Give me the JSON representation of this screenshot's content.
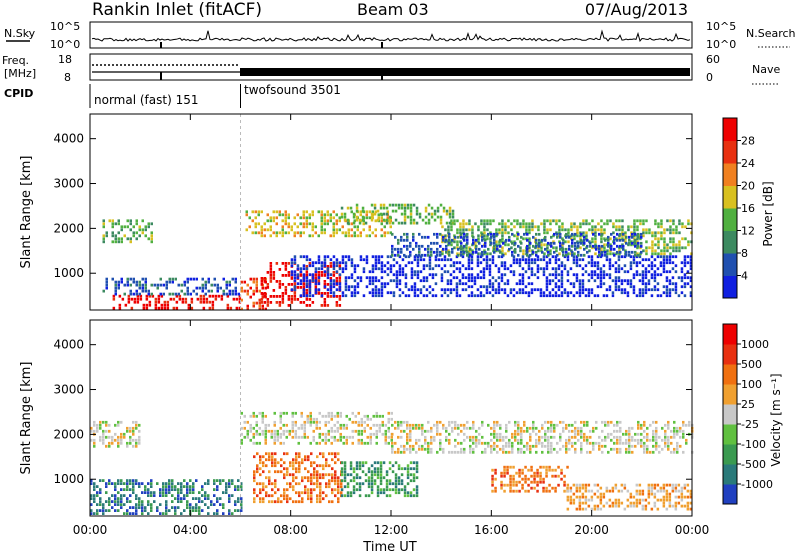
{
  "header": {
    "title": "Rankin Inlet (fitACF)",
    "beam": "Beam 03",
    "date": "07/Aug/2013"
  },
  "status_panels": {
    "nsky": {
      "label": "N.Sky",
      "y_top": "10^5",
      "y_bottom": "10^0"
    },
    "nsearch": {
      "label": "N.Search",
      "y_top": "10^5",
      "y_bottom": "10^0"
    },
    "freq": {
      "label_line1": "Freq.",
      "label_line2": "[MHz]",
      "y_top": "18",
      "y_bottom": "8"
    },
    "nave": {
      "label": "Nave",
      "y_top": "60",
      "y_bottom": "0"
    },
    "cpid": {
      "label": "CPID",
      "modes": [
        "normal (fast) 151",
        "twofsound 3501"
      ],
      "switch_hour": 6
    }
  },
  "chart_data": [
    {
      "type": "heatmap",
      "name": "power",
      "ylabel": "Slant Range [km]",
      "xlabel": "",
      "x_ticks": [
        "00:00",
        "04:00",
        "08:00",
        "12:00",
        "16:00",
        "20:00",
        "00:00"
      ],
      "y_ticks": [
        1000,
        2000,
        3000,
        4000
      ],
      "xlim_hours": [
        0,
        24
      ],
      "ylim_km": [
        180,
        4550
      ],
      "colorbar": {
        "label": "Power [dB]",
        "ticks": [
          4,
          8,
          12,
          16,
          20,
          24,
          28
        ],
        "colors": [
          "#1020e0",
          "#2050b0",
          "#3c8a60",
          "#50b040",
          "#d8c020",
          "#f08020",
          "#e83010",
          "#ee0000"
        ]
      },
      "regions": [
        {
          "x": [
            0.9,
            6.0
          ],
          "y": [
            200,
            520
          ],
          "level": 7
        },
        {
          "x": [
            6.0,
            7.0
          ],
          "y": [
            200,
            900
          ],
          "level": 6
        },
        {
          "x": [
            6.8,
            10.0
          ],
          "y": [
            300,
            1250
          ],
          "level": 7
        },
        {
          "x": [
            0.5,
            6.0
          ],
          "y": [
            520,
            900
          ],
          "level": 1
        },
        {
          "x": [
            0.5,
            2.5
          ],
          "y": [
            1700,
            2200
          ],
          "level": 3
        },
        {
          "x": [
            6.2,
            12.0
          ],
          "y": [
            1800,
            2400
          ],
          "level": 4
        },
        {
          "x": [
            10.0,
            14.5
          ],
          "y": [
            2100,
            2550
          ],
          "level": 3
        },
        {
          "x": [
            14.0,
            24.0
          ],
          "y": [
            1400,
            2200
          ],
          "level": 3
        },
        {
          "x": [
            8.0,
            24.0
          ],
          "y": [
            500,
            1400
          ],
          "level": 0
        },
        {
          "x": [
            12.0,
            22.0
          ],
          "y": [
            1400,
            1900
          ],
          "level": 1
        }
      ]
    },
    {
      "type": "heatmap",
      "name": "velocity",
      "ylabel": "Slant Range [km]",
      "xlabel": "Time UT",
      "x_ticks": [
        "00:00",
        "04:00",
        "08:00",
        "12:00",
        "16:00",
        "20:00",
        "00:00"
      ],
      "y_ticks": [
        1000,
        2000,
        3000,
        4000
      ],
      "xlim_hours": [
        0,
        24
      ],
      "ylim_km": [
        180,
        4550
      ],
      "colorbar": {
        "label": "Velocity [m s⁻¹]",
        "ticks": [
          1000,
          500,
          100,
          25,
          -25,
          -100,
          -500,
          -1000
        ],
        "colors": [
          "#2040c0",
          "#2a7a7a",
          "#3a9a50",
          "#60c040",
          "#c8c8c8",
          "#f0a030",
          "#f07010",
          "#e83010",
          "#ee0000"
        ]
      },
      "regions": [
        {
          "x": [
            0.0,
            6.0
          ],
          "y": [
            200,
            1000
          ],
          "level": 1
        },
        {
          "x": [
            0.0,
            2.0
          ],
          "y": [
            1700,
            2300
          ],
          "level": 4
        },
        {
          "x": [
            6.0,
            12.0
          ],
          "y": [
            1800,
            2500
          ],
          "level": 4
        },
        {
          "x": [
            6.5,
            10.0
          ],
          "y": [
            500,
            1600
          ],
          "level": 6
        },
        {
          "x": [
            10.0,
            13.0
          ],
          "y": [
            600,
            1400
          ],
          "level": 2
        },
        {
          "x": [
            16.0,
            19.0
          ],
          "y": [
            700,
            1300
          ],
          "level": 6
        },
        {
          "x": [
            12.0,
            24.0
          ],
          "y": [
            1600,
            2300
          ],
          "level": 4
        },
        {
          "x": [
            19.0,
            24.0
          ],
          "y": [
            300,
            900
          ],
          "level": 5
        }
      ]
    }
  ]
}
